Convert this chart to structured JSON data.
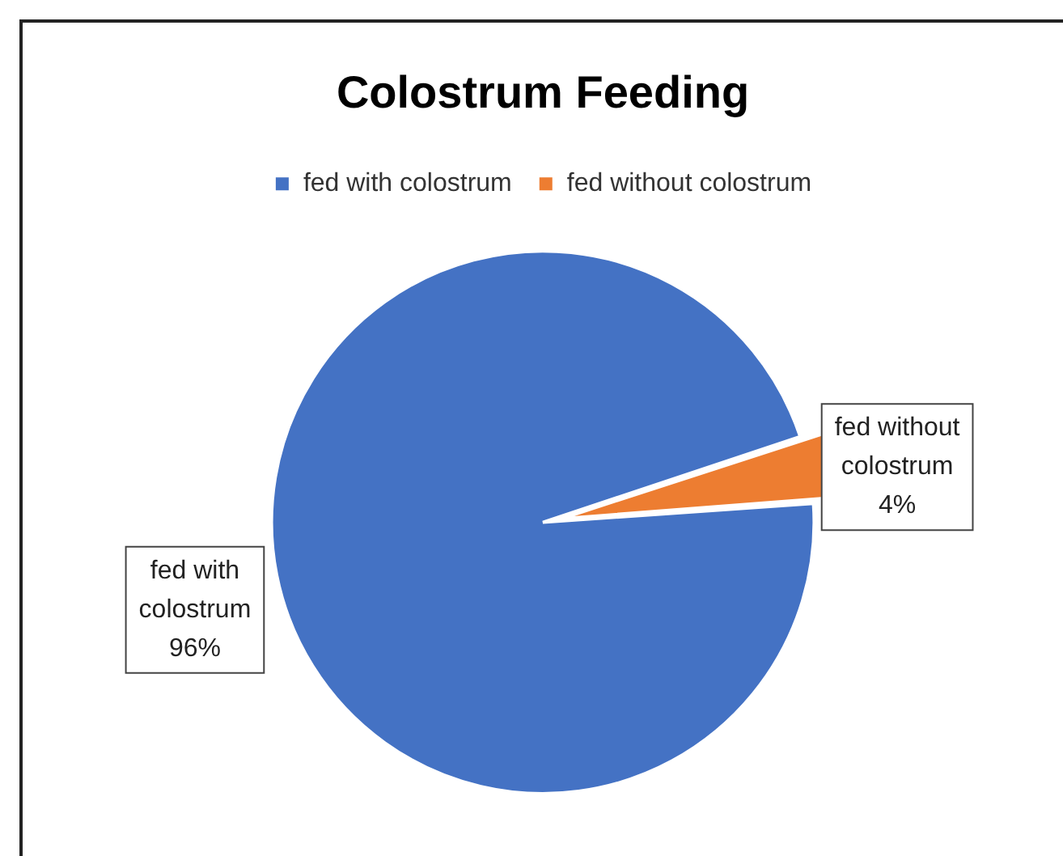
{
  "chart_data": {
    "type": "pie",
    "title": "Colostrum Feeding",
    "categories": [
      "fed with colostrum",
      "fed without colostrum"
    ],
    "values": [
      96,
      4
    ],
    "colors": [
      "#4472c4",
      "#ed7d31"
    ],
    "value_labels": [
      "96%",
      "4%"
    ],
    "legend": "top"
  }
}
